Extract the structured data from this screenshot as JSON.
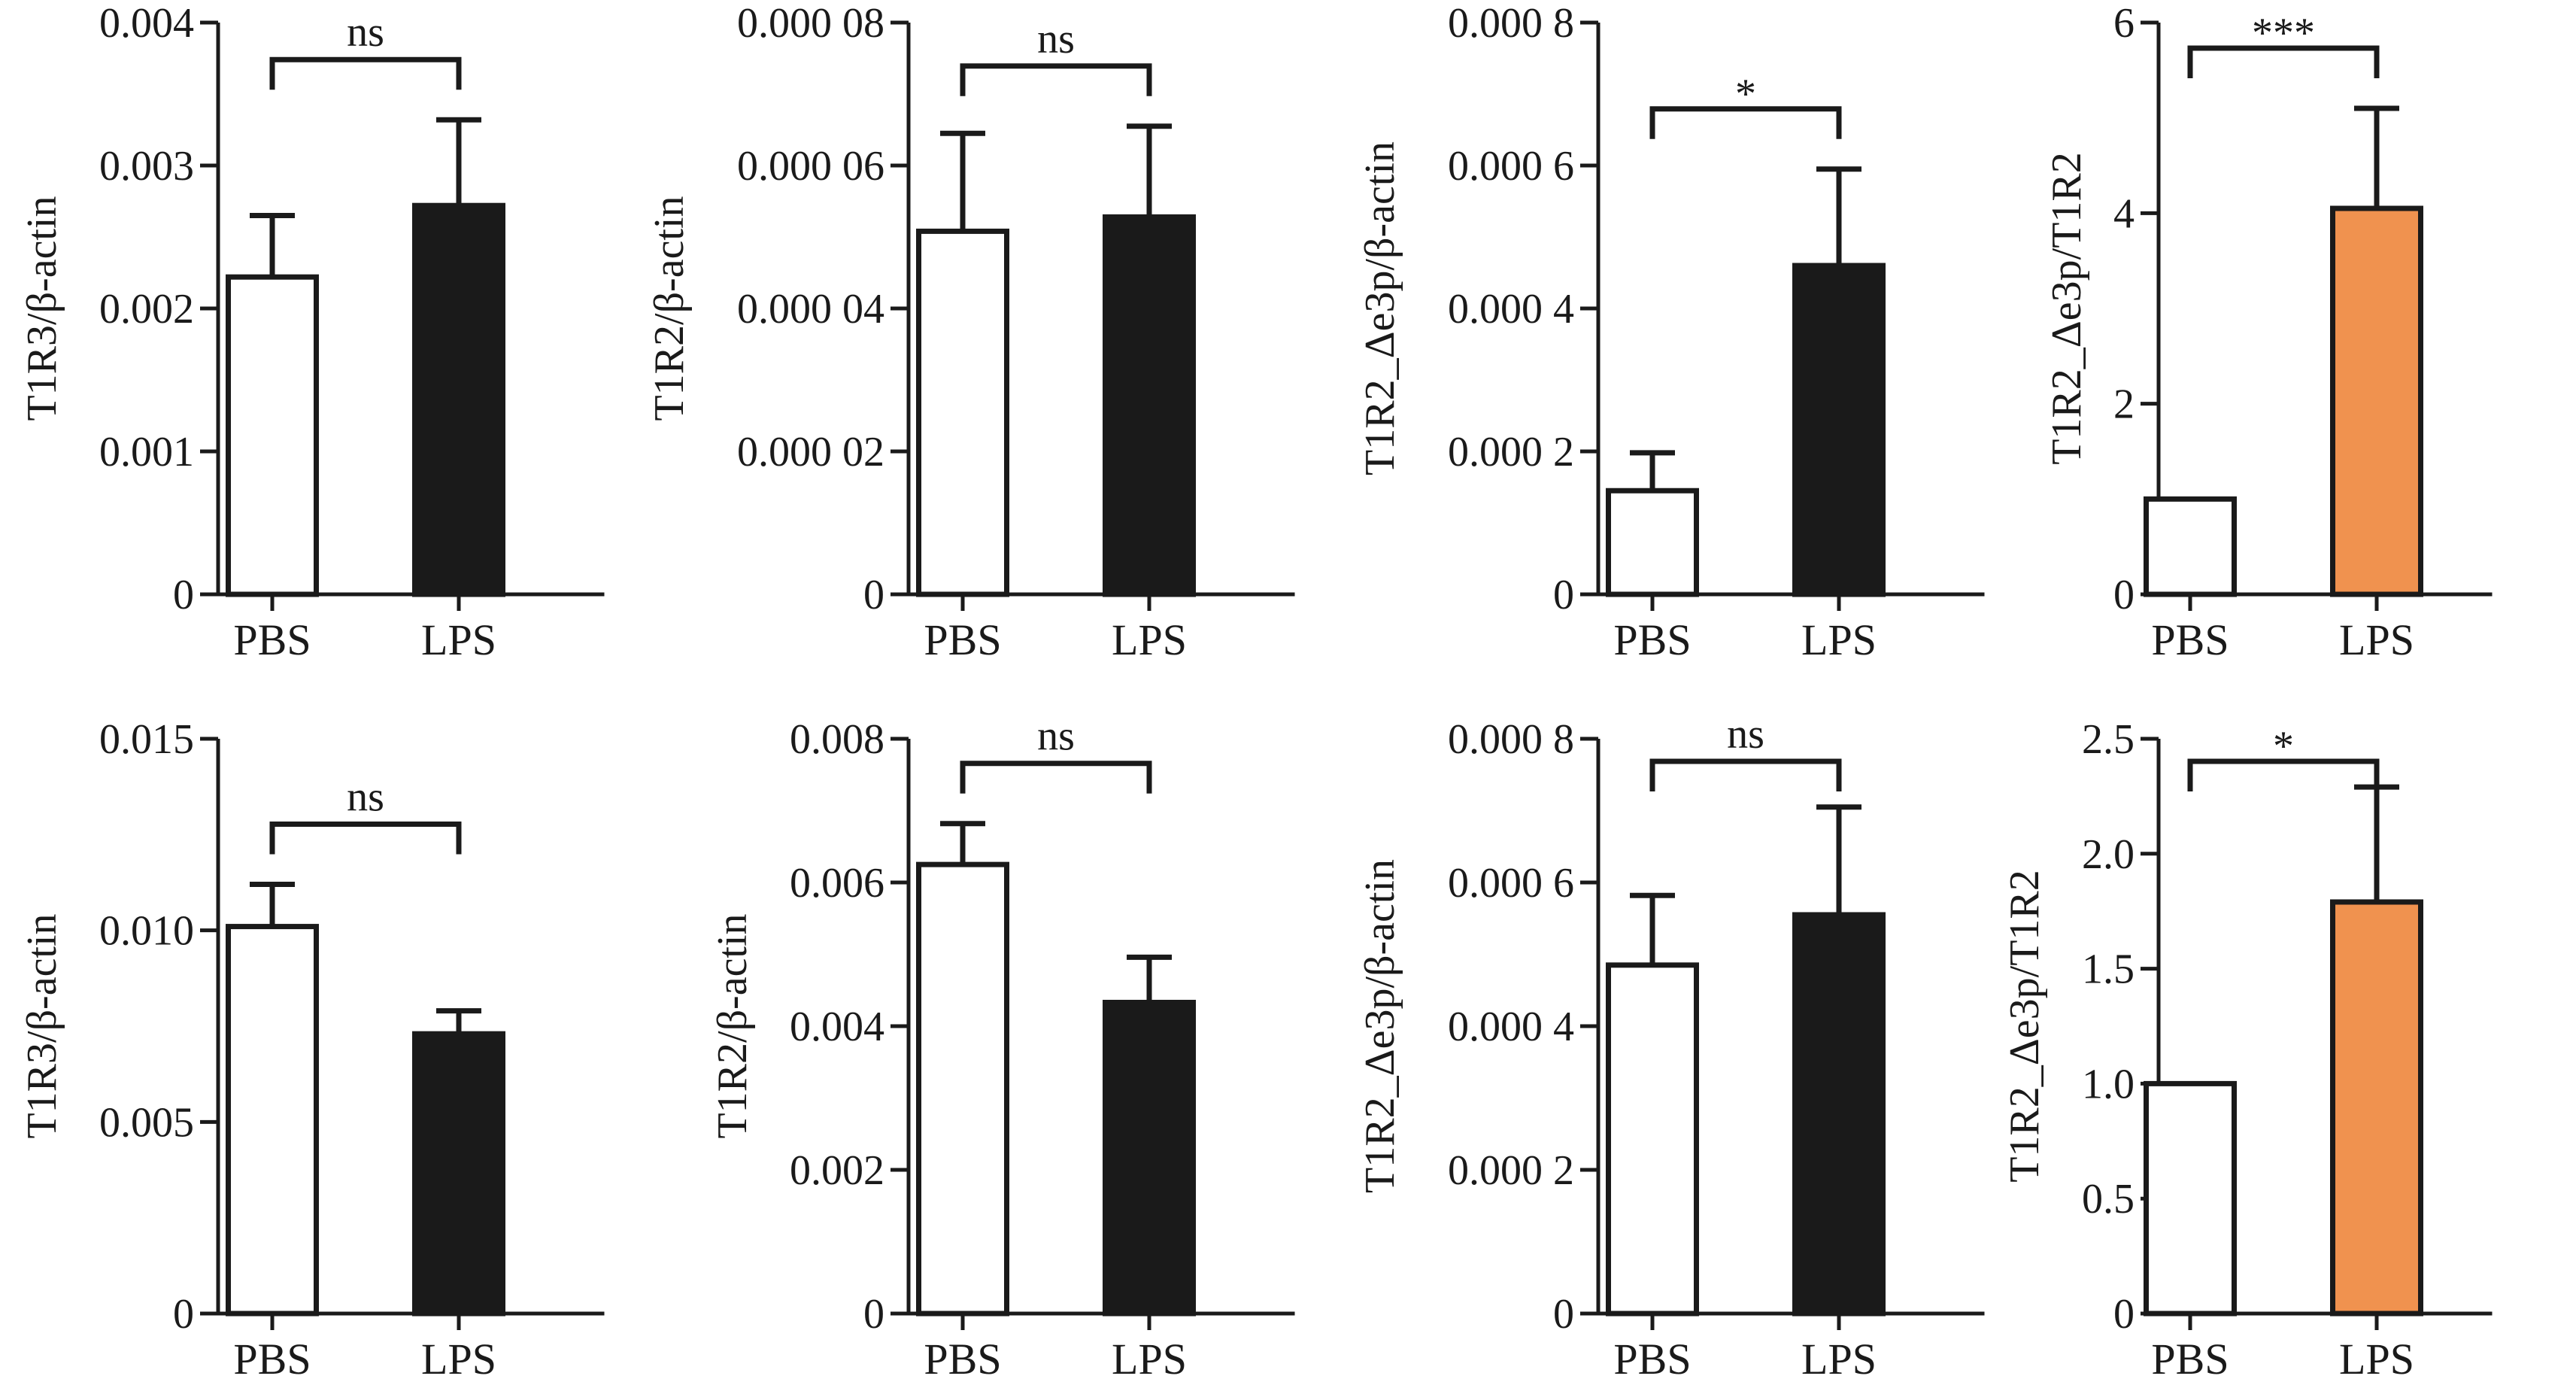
{
  "colors": {
    "axis": "#1a1a1a",
    "pbs_fill": "#ffffff",
    "lps_fill": "#1a1a1a",
    "ratio_lps_fill": "#f0924f"
  },
  "chart_data": [
    {
      "type": "bar",
      "panel": "top-1",
      "categories": [
        "PBS",
        "LPS"
      ],
      "values": [
        0.00222,
        0.00272
      ],
      "error_bars": [
        0.00043,
        0.0006
      ],
      "fills": [
        "#ffffff",
        "#1a1a1a"
      ],
      "ylabel": "T1R3/β-actin",
      "ylim": [
        0,
        0.004
      ],
      "yticks": [
        0,
        0.001,
        0.002,
        0.003,
        0.004
      ],
      "ytick_labels": [
        "0",
        "0.001",
        "0.002",
        "0.003",
        "0.004"
      ],
      "significance": "ns"
    },
    {
      "type": "bar",
      "panel": "top-2",
      "categories": [
        "PBS",
        "LPS"
      ],
      "values": [
        5.08e-05,
        5.28e-05
      ],
      "error_bars": [
        1.37e-05,
        1.27e-05
      ],
      "fills": [
        "#ffffff",
        "#1a1a1a"
      ],
      "ylabel": "T1R2/β-actin",
      "ylim": [
        0,
        8e-05
      ],
      "yticks": [
        0,
        2e-05,
        4e-05,
        6e-05,
        8e-05
      ],
      "ytick_labels": [
        "0",
        "0.000 02",
        "0.000 04",
        "0.000 06",
        "0.000 08"
      ],
      "significance": "ns"
    },
    {
      "type": "bar",
      "panel": "top-3",
      "categories": [
        "PBS",
        "LPS"
      ],
      "values": [
        0.000145,
        0.00046
      ],
      "error_bars": [
        5.3e-05,
        0.000135
      ],
      "fills": [
        "#ffffff",
        "#1a1a1a"
      ],
      "ylabel": "T1R2_Δe3p/β-actin",
      "ylim": [
        0,
        0.0008
      ],
      "yticks": [
        0,
        0.0002,
        0.0004,
        0.0006,
        0.0008
      ],
      "ytick_labels": [
        "0",
        "0.000 2",
        "0.000 4",
        "0.000 6",
        "0.000 8"
      ],
      "significance": "*"
    },
    {
      "type": "bar",
      "panel": "top-4",
      "categories": [
        "PBS",
        "LPS"
      ],
      "values": [
        1.0,
        4.05
      ],
      "error_bars": [
        0,
        1.05
      ],
      "fills": [
        "#ffffff",
        "#f0924f"
      ],
      "ylabel": "T1R2_Δe3p/T1R2",
      "ylim": [
        0,
        6
      ],
      "yticks": [
        0,
        2,
        4,
        6
      ],
      "ytick_labels": [
        "0",
        "2",
        "4",
        "6"
      ],
      "significance": "***"
    },
    {
      "type": "bar",
      "panel": "bottom-1",
      "categories": [
        "PBS",
        "LPS"
      ],
      "values": [
        0.0101,
        0.0073
      ],
      "error_bars": [
        0.0011,
        0.0006
      ],
      "fills": [
        "#ffffff",
        "#1a1a1a"
      ],
      "ylabel": "T1R3/β-actin",
      "ylim": [
        0,
        0.015
      ],
      "yticks": [
        0,
        0.005,
        0.01,
        0.015
      ],
      "ytick_labels": [
        "0",
        "0.005",
        "0.010",
        "0.015"
      ],
      "significance": "ns"
    },
    {
      "type": "bar",
      "panel": "bottom-2",
      "categories": [
        "PBS",
        "LPS"
      ],
      "values": [
        0.00625,
        0.00433
      ],
      "error_bars": [
        0.00057,
        0.00063
      ],
      "fills": [
        "#ffffff",
        "#1a1a1a"
      ],
      "ylabel": "T1R2/β-actin",
      "ylim": [
        0,
        0.008
      ],
      "yticks": [
        0,
        0.002,
        0.004,
        0.006,
        0.008
      ],
      "ytick_labels": [
        "0",
        "0.002",
        "0.004",
        "0.006",
        "0.008"
      ],
      "significance": "ns"
    },
    {
      "type": "bar",
      "panel": "bottom-3",
      "categories": [
        "PBS",
        "LPS"
      ],
      "values": [
        0.000485,
        0.000555
      ],
      "error_bars": [
        9.7e-05,
        0.00015
      ],
      "fills": [
        "#ffffff",
        "#1a1a1a"
      ],
      "ylabel": "T1R2_Δe3p/β-actin",
      "ylim": [
        0,
        0.0008
      ],
      "yticks": [
        0,
        0.0002,
        0.0004,
        0.0006,
        0.0008
      ],
      "ytick_labels": [
        "0",
        "0.000 2",
        "0.000 4",
        "0.000 6",
        "0.000 8"
      ],
      "significance": "ns"
    },
    {
      "type": "bar",
      "panel": "bottom-4",
      "categories": [
        "PBS",
        "LPS"
      ],
      "values": [
        1.0,
        1.79
      ],
      "error_bars": [
        0,
        0.5
      ],
      "fills": [
        "#ffffff",
        "#f0924f"
      ],
      "ylabel": "T1R2_Δe3p/T1R2",
      "ylim": [
        0,
        2.5
      ],
      "yticks": [
        0,
        0.5,
        1.0,
        1.5,
        2.0,
        2.5
      ],
      "ytick_labels": [
        "0",
        "0.5",
        "1.0",
        "1.5",
        "2.0",
        "2.5"
      ],
      "significance": "*"
    }
  ]
}
